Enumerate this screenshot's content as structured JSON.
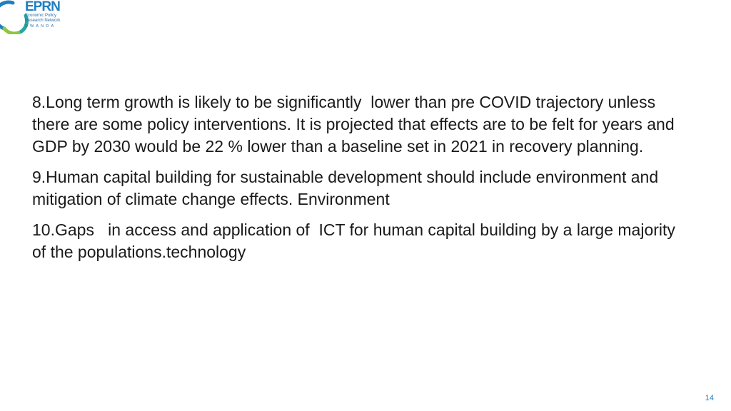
{
  "logo": {
    "brand": "EPRN",
    "line1": "Economic Policy",
    "line2": "Research Network",
    "country": "RWANDA",
    "colors": {
      "blue": "#1f7fc0",
      "green": "#8cc63f",
      "teal": "#2aa6a0"
    }
  },
  "paragraphs": [
    "8.Long term growth is likely to be significantly  lower than pre COVID trajectory unless there are some policy interventions. It is projected that effects are to be felt for years and     GDP by 2030 would be 22 % lower than a baseline set in 2021 in recovery planning.",
    "9.Human capital building for sustainable development should include environment and mitigation of climate change effects. Environment",
    "10.Gaps   in access and application of  ICT for human capital building by a large majority of the populations.technology"
  ],
  "page_number": "14"
}
